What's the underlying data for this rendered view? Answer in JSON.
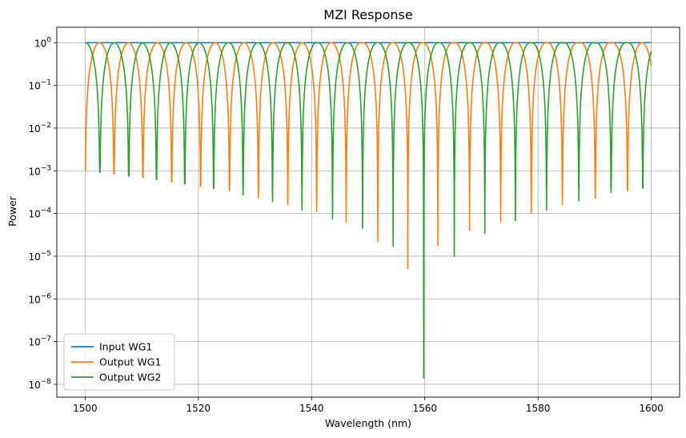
{
  "chart_data": {
    "type": "line",
    "title": "MZI Response",
    "xlabel": "Wavelength (nm)",
    "ylabel": "Power",
    "xlim": [
      1495,
      1605
    ],
    "ylim": [
      5e-09,
      2.3
    ],
    "yscale": "log",
    "grid": true,
    "legend_position": "lower-left",
    "x_ticks": [
      1500,
      1520,
      1540,
      1560,
      1580,
      1600
    ],
    "x_tick_labels": [
      "1500",
      "1520",
      "1540",
      "1560",
      "1580",
      "1600"
    ],
    "y_ticks": [
      1e-08,
      1e-07,
      1e-06,
      1e-05,
      0.0001,
      0.001,
      0.01,
      0.1,
      1
    ],
    "y_tick_labels": [
      {
        "base": "10",
        "exp": "−8"
      },
      {
        "base": "10",
        "exp": "−7"
      },
      {
        "base": "10",
        "exp": "−6"
      },
      {
        "base": "10",
        "exp": "−5"
      },
      {
        "base": "10",
        "exp": "−4"
      },
      {
        "base": "10",
        "exp": "−3"
      },
      {
        "base": "10",
        "exp": "−2"
      },
      {
        "base": "10",
        "exp": "−1"
      },
      {
        "base": "10",
        "exp": "0"
      }
    ],
    "x_range": [
      1500,
      1600
    ],
    "series": [
      {
        "name": "Input WG1",
        "color": "#1f77b4",
        "model": "constant",
        "value": 1.0
      },
      {
        "name": "Output WG1",
        "color": "#ff7f0e",
        "model": "sin2",
        "period_nm": 5.113,
        "phase_zero_nm": 1500,
        "floor": 0.00086,
        "minima_nm": [
          1500.0,
          1505.1,
          1510.2,
          1515.3,
          1520.4,
          1525.5,
          1530.6,
          1535.8,
          1540.9,
          1546.1,
          1551.7,
          1557.0,
          1562.3,
          1567.9,
          1573.4,
          1578.8,
          1584.3,
          1590.1,
          1595.8
        ],
        "minima_values": [
          0.001,
          0.00085,
          0.0007,
          0.00055,
          0.00043,
          0.00034,
          0.00024,
          0.00016,
          0.00011,
          6.2e-05,
          2.2e-05,
          5.2e-06,
          1.8e-05,
          4e-05,
          6.4e-05,
          0.0001,
          0.00016,
          0.00023,
          0.00034
        ]
      },
      {
        "name": "Output WG2",
        "color": "#2ca02c",
        "model": "cos2",
        "period_nm": 5.113,
        "phase_zero_nm": 1500,
        "floor": 0.00086,
        "minima_nm": [
          1502.6,
          1507.7,
          1512.6,
          1517.6,
          1522.7,
          1527.9,
          1533.1,
          1538.3,
          1543.7,
          1549.0,
          1554.4,
          1559.8,
          1565.2,
          1570.6,
          1576.0,
          1581.5,
          1587.2,
          1592.9,
          1598.5
        ],
        "minima_values": [
          0.00092,
          0.00075,
          0.00062,
          0.0005,
          0.00038,
          0.00027,
          0.00019,
          0.00012,
          7.5e-05,
          4.5e-05,
          1.7e-05,
          1.4e-08,
          9.8e-06,
          3.4e-05,
          6.8e-05,
          0.00012,
          0.0002,
          0.00031,
          0.00039
        ]
      }
    ]
  }
}
